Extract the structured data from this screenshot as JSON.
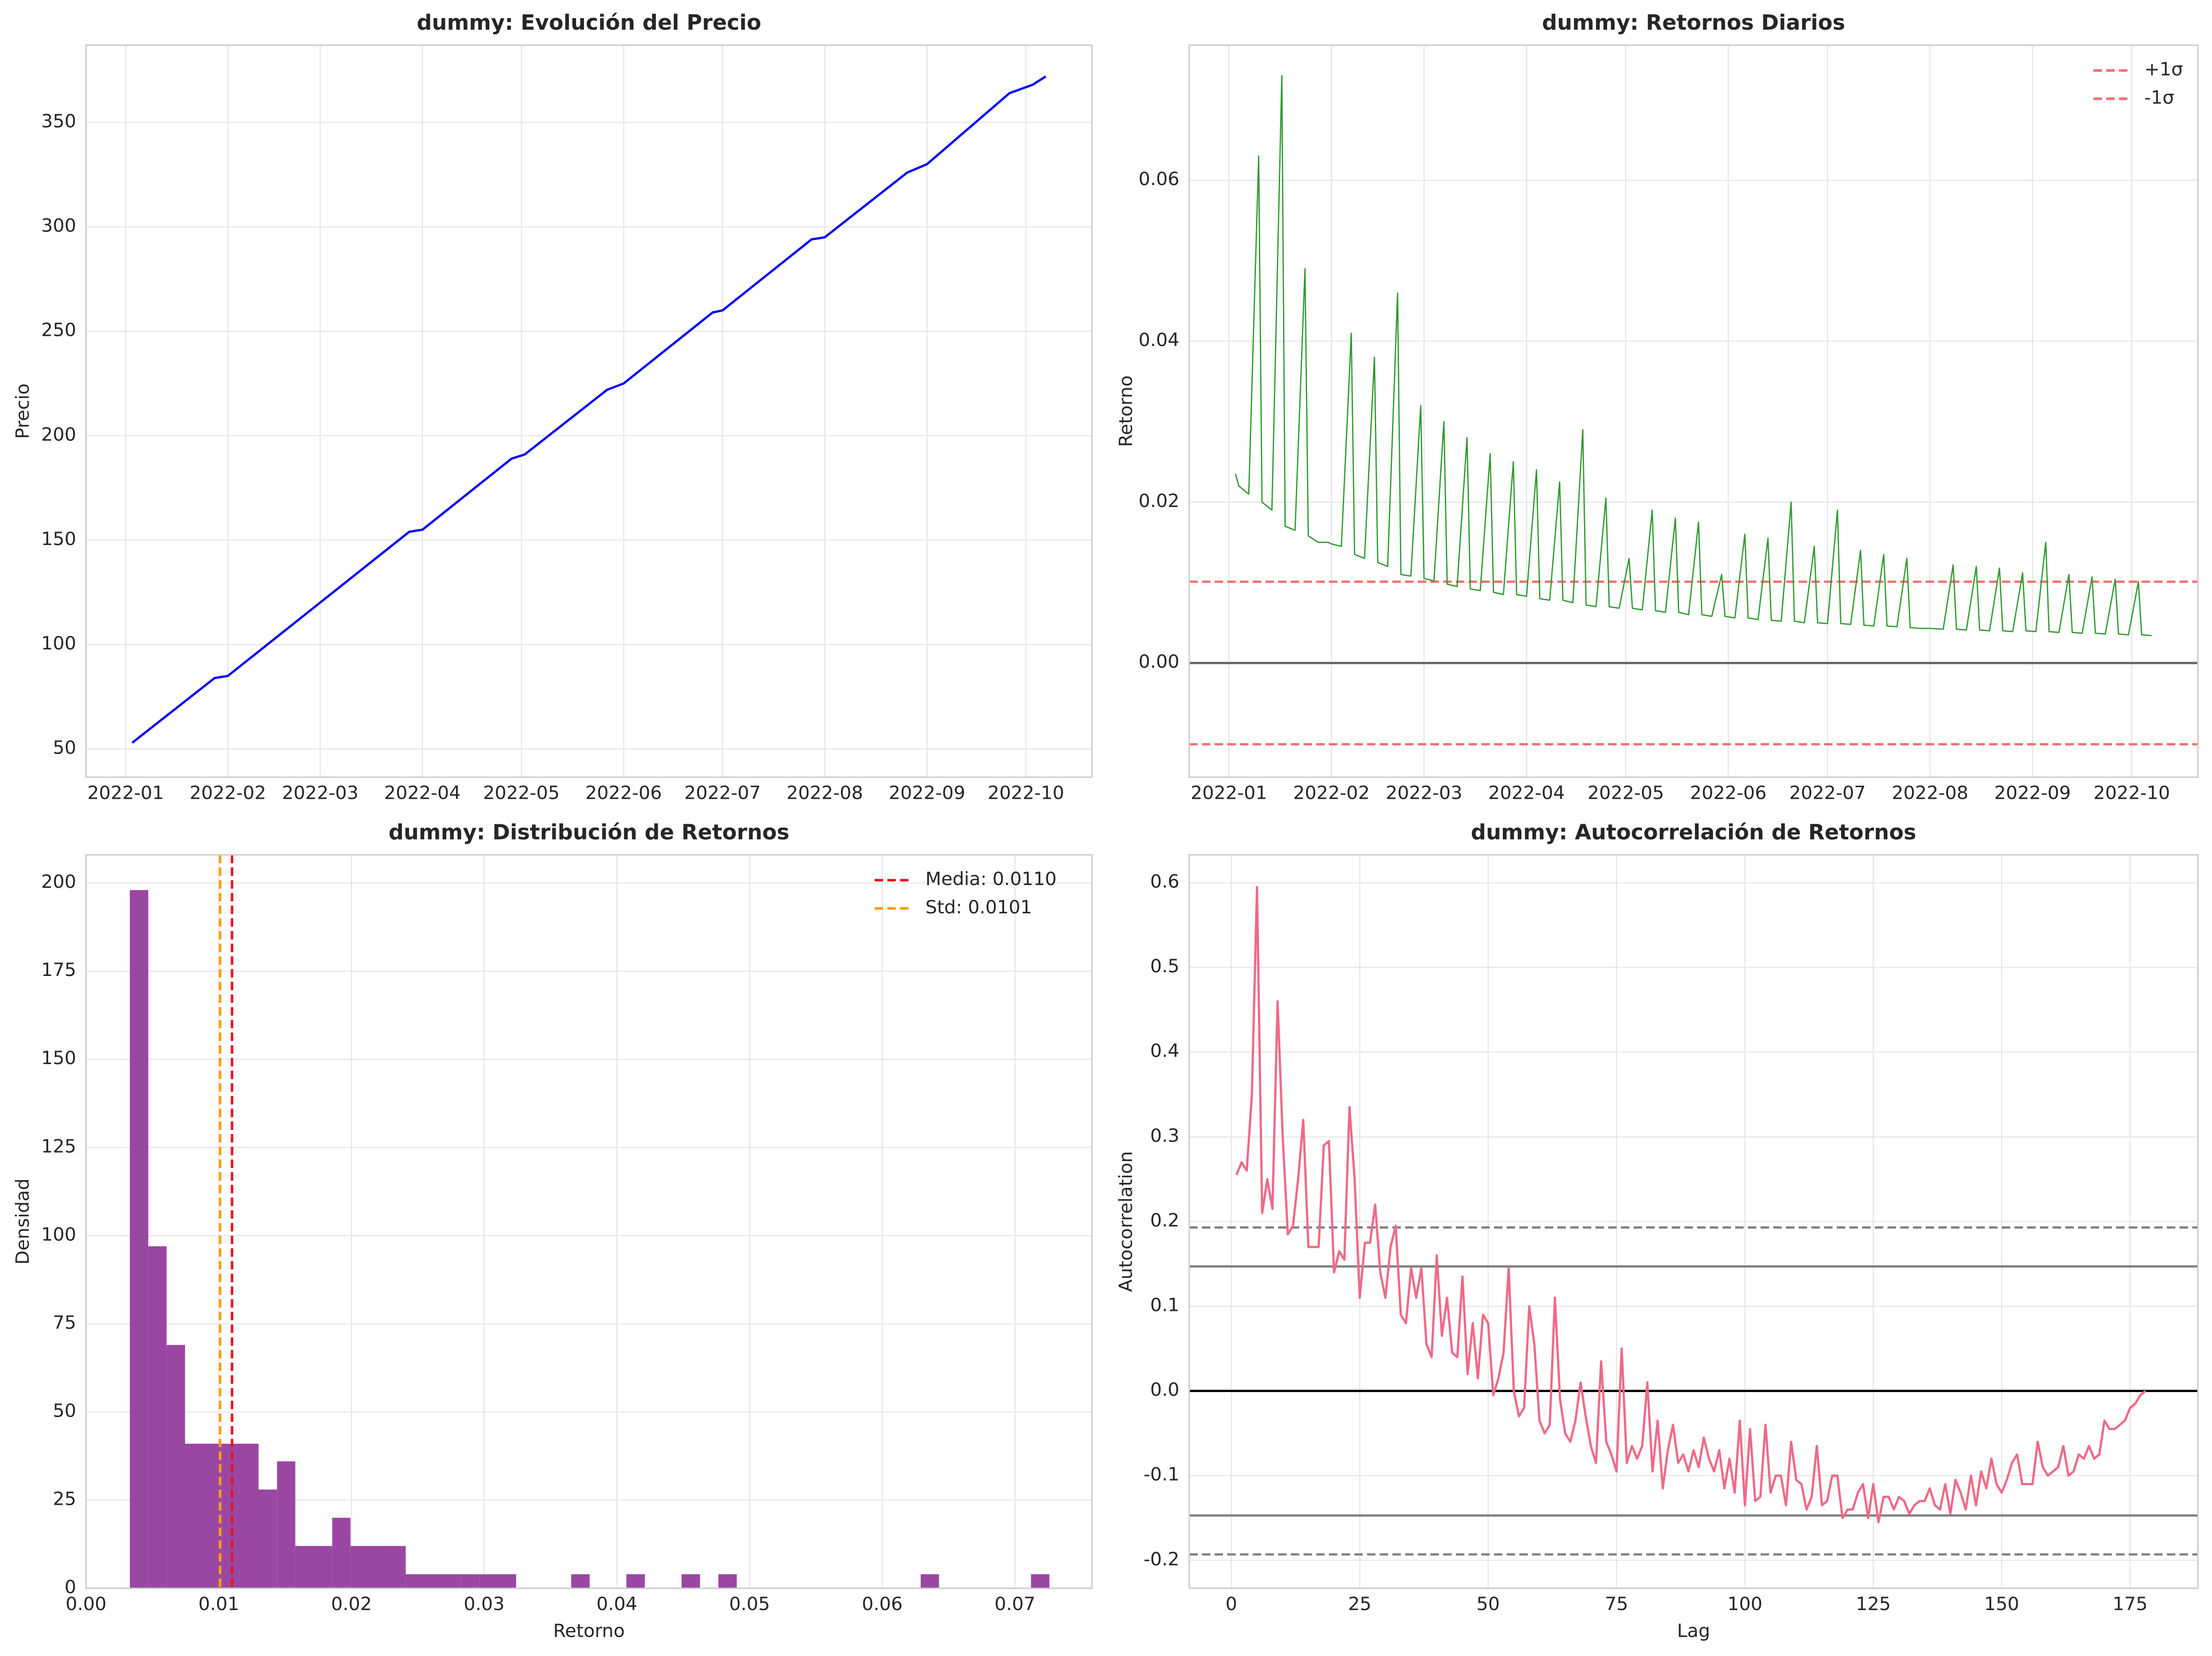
{
  "chart_data": [
    {
      "type": "line",
      "title": "dummy: Evolución del Precio",
      "ylabel": "Precio",
      "x": [
        "2022-01-03",
        "2022-01-28",
        "2022-02-01",
        "2022-03-28",
        "2022-04-01",
        "2022-04-28",
        "2022-05-02",
        "2022-05-27",
        "2022-06-01",
        "2022-06-28",
        "2022-07-01",
        "2022-07-28",
        "2022-08-01",
        "2022-08-26",
        "2022-09-01",
        "2022-09-26",
        "2022-10-03",
        "2022-10-07"
      ],
      "values": [
        53,
        84,
        85,
        154,
        155,
        189,
        191,
        222,
        225,
        259,
        260,
        294,
        295,
        326,
        330,
        364,
        368,
        372
      ],
      "color": "#0000ff",
      "line_width": 1.6,
      "xlim": [
        "2021-12-20",
        "2022-10-21"
      ],
      "xticks": [
        "2022-01",
        "2022-02",
        "2022-03",
        "2022-04",
        "2022-05",
        "2022-06",
        "2022-07",
        "2022-08",
        "2022-09",
        "2022-10"
      ],
      "ylim": [
        36.5,
        387
      ],
      "yticks": [
        50,
        100,
        150,
        200,
        250,
        300,
        350
      ],
      "grid": true
    },
    {
      "type": "line",
      "title": "dummy: Retornos Diarios",
      "ylabel": "Retorno",
      "x": [
        "2022-01-03",
        "2022-01-04",
        "2022-01-07",
        "2022-01-10",
        "2022-01-11",
        "2022-01-14",
        "2022-01-17",
        "2022-01-18",
        "2022-01-21",
        "2022-01-24",
        "2022-01-25",
        "2022-01-28",
        "2022-01-31",
        "2022-02-01",
        "2022-02-04",
        "2022-02-07",
        "2022-02-08",
        "2022-02-11",
        "2022-02-14",
        "2022-02-15",
        "2022-02-18",
        "2022-02-21",
        "2022-02-22",
        "2022-02-25",
        "2022-02-28",
        "2022-03-01",
        "2022-03-04",
        "2022-03-07",
        "2022-03-08",
        "2022-03-11",
        "2022-03-14",
        "2022-03-15",
        "2022-03-18",
        "2022-03-21",
        "2022-03-22",
        "2022-03-25",
        "2022-03-28",
        "2022-03-29",
        "2022-04-01",
        "2022-04-04",
        "2022-04-05",
        "2022-04-08",
        "2022-04-11",
        "2022-04-12",
        "2022-04-15",
        "2022-04-18",
        "2022-04-19",
        "2022-04-22",
        "2022-04-25",
        "2022-04-26",
        "2022-04-29",
        "2022-05-02",
        "2022-05-03",
        "2022-05-06",
        "2022-05-09",
        "2022-05-10",
        "2022-05-13",
        "2022-05-16",
        "2022-05-17",
        "2022-05-20",
        "2022-05-23",
        "2022-05-24",
        "2022-05-27",
        "2022-05-30",
        "2022-05-31",
        "2022-06-03",
        "2022-06-06",
        "2022-06-07",
        "2022-06-10",
        "2022-06-13",
        "2022-06-14",
        "2022-06-17",
        "2022-06-20",
        "2022-06-21",
        "2022-06-24",
        "2022-06-27",
        "2022-06-28",
        "2022-07-01",
        "2022-07-04",
        "2022-07-05",
        "2022-07-08",
        "2022-07-11",
        "2022-07-12",
        "2022-07-15",
        "2022-07-18",
        "2022-07-19",
        "2022-07-22",
        "2022-07-25",
        "2022-07-26",
        "2022-07-29",
        "2022-08-01",
        "2022-08-05",
        "2022-08-08",
        "2022-08-09",
        "2022-08-12",
        "2022-08-15",
        "2022-08-16",
        "2022-08-19",
        "2022-08-22",
        "2022-08-23",
        "2022-08-26",
        "2022-08-29",
        "2022-08-30",
        "2022-09-02",
        "2022-09-05",
        "2022-09-06",
        "2022-09-09",
        "2022-09-12",
        "2022-09-13",
        "2022-09-16",
        "2022-09-19",
        "2022-09-20",
        "2022-09-23",
        "2022-09-26",
        "2022-09-27",
        "2022-09-30",
        "2022-10-03",
        "2022-10-04",
        "2022-10-07"
      ],
      "values": [
        0.0235,
        0.022,
        0.021,
        0.063,
        0.02,
        0.019,
        0.073,
        0.017,
        0.0165,
        0.049,
        0.0158,
        0.015,
        0.015,
        0.0148,
        0.0145,
        0.041,
        0.0135,
        0.013,
        0.038,
        0.0125,
        0.012,
        0.046,
        0.011,
        0.0108,
        0.032,
        0.0105,
        0.0102,
        0.03,
        0.0098,
        0.0095,
        0.028,
        0.0092,
        0.009,
        0.026,
        0.0088,
        0.0085,
        0.025,
        0.0085,
        0.0083,
        0.024,
        0.008,
        0.0078,
        0.0225,
        0.0078,
        0.0075,
        0.029,
        0.0072,
        0.007,
        0.0205,
        0.007,
        0.0068,
        0.013,
        0.0068,
        0.0066,
        0.019,
        0.0065,
        0.0063,
        0.018,
        0.0063,
        0.006,
        0.0175,
        0.006,
        0.0058,
        0.011,
        0.0058,
        0.0056,
        0.016,
        0.0056,
        0.0054,
        0.0155,
        0.0053,
        0.0052,
        0.02,
        0.0052,
        0.005,
        0.0145,
        0.005,
        0.0049,
        0.019,
        0.0049,
        0.0048,
        0.014,
        0.0047,
        0.0046,
        0.0135,
        0.0046,
        0.0045,
        0.013,
        0.0044,
        0.0043,
        0.0043,
        0.0042,
        0.0122,
        0.0042,
        0.0041,
        0.012,
        0.0041,
        0.004,
        0.0118,
        0.004,
        0.0039,
        0.0112,
        0.004,
        0.0039,
        0.015,
        0.0039,
        0.0038,
        0.011,
        0.0038,
        0.0037,
        0.0107,
        0.0037,
        0.0036,
        0.0104,
        0.0036,
        0.0035,
        0.0101,
        0.0035,
        0.0034
      ],
      "color": "#2e9a2e",
      "line_width": 0.9,
      "hlines": [
        {
          "value": 0,
          "color": "#666666",
          "style": "solid"
        },
        {
          "name": "+1σ",
          "value": 0.0101,
          "color": "#f26d6d",
          "style": "dashed"
        },
        {
          "name": "-1σ",
          "value": -0.0101,
          "color": "#f26d6d",
          "style": "dashed"
        }
      ],
      "legend": "upper right",
      "xlim": [
        "2021-12-20",
        "2022-10-21"
      ],
      "xticks": [
        "2022-01",
        "2022-02",
        "2022-03",
        "2022-04",
        "2022-05",
        "2022-06",
        "2022-07",
        "2022-08",
        "2022-09",
        "2022-10"
      ],
      "ylim": [
        -0.0142,
        0.0768
      ],
      "yticks": [
        {
          "value": 0,
          "label": "0.00"
        },
        {
          "value": 0.02,
          "label": "0.02"
        },
        {
          "value": 0.04,
          "label": "0.04"
        },
        {
          "value": 0.06,
          "label": "0.06"
        }
      ],
      "grid": true
    },
    {
      "type": "histogram",
      "title": "dummy: Distribución de Retornos",
      "xlabel": "Retorno",
      "ylabel": "Densidad",
      "bins": [
        0.0033,
        0.00469,
        0.00607,
        0.00746,
        0.00884,
        0.01023,
        0.01162,
        0.013,
        0.01439,
        0.01577,
        0.01716,
        0.01855,
        0.01993,
        0.02132,
        0.0227,
        0.02409,
        0.02548,
        0.02686,
        0.02825,
        0.02963,
        0.03102,
        0.03241,
        0.03379,
        0.03518,
        0.03656,
        0.03795,
        0.03934,
        0.04072,
        0.04211,
        0.04349,
        0.04488,
        0.04627,
        0.04765,
        0.04904,
        0.05042,
        0.05181,
        0.0532,
        0.05458,
        0.05597,
        0.05735,
        0.05874,
        0.06013,
        0.06151,
        0.0629,
        0.06428,
        0.06567,
        0.06706,
        0.06844,
        0.06983,
        0.07121,
        0.0726
      ],
      "values": [
        198,
        97,
        69,
        41,
        41,
        41,
        41,
        28,
        36,
        12,
        12,
        20,
        12,
        12,
        12,
        4,
        4,
        4,
        4,
        4,
        4,
        0,
        0,
        0,
        4,
        0,
        0,
        4,
        0,
        0,
        4,
        0,
        4,
        0,
        0,
        0,
        0,
        0,
        0,
        0,
        0,
        0,
        0,
        4,
        0,
        0,
        0,
        0,
        0,
        4
      ],
      "color": "#9a47a3",
      "vlines": [
        {
          "name": "Media: 0.0110",
          "value": 0.011,
          "color": "#e8141c",
          "style": "dashed"
        },
        {
          "name": "Std: 0.0101",
          "value": 0.0101,
          "color": "#ff9d0a",
          "style": "dashed"
        }
      ],
      "legend": "upper right",
      "xlim": [
        0,
        0.0758
      ],
      "xticks": [
        {
          "value": 0,
          "label": "0.00"
        },
        {
          "value": 0.01,
          "label": "0.01"
        },
        {
          "value": 0.02,
          "label": "0.02"
        },
        {
          "value": 0.03,
          "label": "0.03"
        },
        {
          "value": 0.04,
          "label": "0.04"
        },
        {
          "value": 0.05,
          "label": "0.05"
        },
        {
          "value": 0.06,
          "label": "0.06"
        },
        {
          "value": 0.07,
          "label": "0.07"
        }
      ],
      "ylim": [
        0,
        208
      ],
      "yticks": [
        0,
        25,
        50,
        75,
        100,
        125,
        150,
        175,
        200
      ],
      "grid": true
    },
    {
      "type": "line",
      "title": "dummy: Autocorrelación de Retornos",
      "xlabel": "Lag",
      "ylabel": "Autocorrelation",
      "x": [
        1,
        2,
        3,
        4,
        5,
        6,
        7,
        8,
        9,
        10,
        11,
        12,
        13,
        14,
        15,
        16,
        17,
        18,
        19,
        20,
        21,
        22,
        23,
        24,
        25,
        26,
        27,
        28,
        29,
        30,
        31,
        32,
        33,
        34,
        35,
        36,
        37,
        38,
        39,
        40,
        41,
        42,
        43,
        44,
        45,
        46,
        47,
        48,
        49,
        50,
        51,
        52,
        53,
        54,
        55,
        56,
        57,
        58,
        59,
        60,
        61,
        62,
        63,
        64,
        65,
        66,
        67,
        68,
        69,
        70,
        71,
        72,
        73,
        74,
        75,
        76,
        77,
        78,
        79,
        80,
        81,
        82,
        83,
        84,
        85,
        86,
        87,
        88,
        89,
        90,
        91,
        92,
        93,
        94,
        95,
        96,
        97,
        98,
        99,
        100,
        101,
        102,
        103,
        104,
        105,
        106,
        107,
        108,
        109,
        110,
        111,
        112,
        113,
        114,
        115,
        116,
        117,
        118,
        119,
        120,
        121,
        122,
        123,
        124,
        125,
        126,
        127,
        128,
        129,
        130,
        131,
        132,
        133,
        134,
        135,
        136,
        137,
        138,
        139,
        140,
        141,
        142,
        143,
        144,
        145,
        146,
        147,
        148,
        149,
        150,
        151,
        152,
        153,
        154,
        155,
        156,
        157,
        158,
        159,
        160,
        161,
        162,
        163,
        164,
        165,
        166,
        167,
        168,
        169,
        170,
        171,
        172,
        173,
        174,
        175,
        176,
        177,
        178
      ],
      "values": [
        0.255,
        0.27,
        0.26,
        0.35,
        0.595,
        0.21,
        0.25,
        0.215,
        0.46,
        0.3,
        0.185,
        0.195,
        0.25,
        0.32,
        0.17,
        0.17,
        0.17,
        0.29,
        0.295,
        0.14,
        0.165,
        0.155,
        0.335,
        0.25,
        0.11,
        0.175,
        0.175,
        0.22,
        0.14,
        0.11,
        0.17,
        0.195,
        0.09,
        0.08,
        0.145,
        0.11,
        0.145,
        0.055,
        0.04,
        0.16,
        0.065,
        0.11,
        0.045,
        0.04,
        0.135,
        0.02,
        0.08,
        0.015,
        0.09,
        0.08,
        -0.005,
        0.015,
        0.045,
        0.145,
        0.0,
        -0.03,
        -0.02,
        0.1,
        0.055,
        -0.035,
        -0.05,
        -0.04,
        0.11,
        -0.01,
        -0.05,
        -0.06,
        -0.035,
        0.01,
        -0.03,
        -0.065,
        -0.085,
        0.035,
        -0.06,
        -0.075,
        -0.095,
        0.05,
        -0.085,
        -0.065,
        -0.08,
        -0.065,
        0.01,
        -0.095,
        -0.035,
        -0.115,
        -0.07,
        -0.04,
        -0.085,
        -0.075,
        -0.095,
        -0.07,
        -0.09,
        -0.055,
        -0.08,
        -0.095,
        -0.07,
        -0.115,
        -0.08,
        -0.12,
        -0.035,
        -0.135,
        -0.045,
        -0.13,
        -0.125,
        -0.04,
        -0.12,
        -0.1,
        -0.1,
        -0.135,
        -0.06,
        -0.105,
        -0.11,
        -0.14,
        -0.125,
        -0.065,
        -0.135,
        -0.13,
        -0.1,
        -0.1,
        -0.15,
        -0.14,
        -0.14,
        -0.12,
        -0.11,
        -0.15,
        -0.11,
        -0.155,
        -0.125,
        -0.125,
        -0.14,
        -0.125,
        -0.13,
        -0.145,
        -0.135,
        -0.13,
        -0.13,
        -0.115,
        -0.135,
        -0.14,
        -0.11,
        -0.145,
        -0.105,
        -0.12,
        -0.14,
        -0.1,
        -0.135,
        -0.095,
        -0.115,
        -0.08,
        -0.11,
        -0.12,
        -0.105,
        -0.085,
        -0.075,
        -0.11,
        -0.11,
        -0.11,
        -0.06,
        -0.09,
        -0.1,
        -0.095,
        -0.09,
        -0.065,
        -0.1,
        -0.095,
        -0.075,
        -0.08,
        -0.065,
        -0.08,
        -0.075,
        -0.035,
        -0.045,
        -0.045,
        -0.04,
        -0.035,
        -0.02,
        -0.015,
        -0.005,
        0.0
      ],
      "color": "#ee6a87",
      "line_width": 1.6,
      "hlines": [
        {
          "value": 0,
          "color": "#000000",
          "style": "solid"
        },
        {
          "value": 0.147,
          "color": "#7f7f7f",
          "style": "solid"
        },
        {
          "value": -0.147,
          "color": "#7f7f7f",
          "style": "solid"
        },
        {
          "value": 0.193,
          "color": "#7f7f7f",
          "style": "dashed"
        },
        {
          "value": -0.193,
          "color": "#7f7f7f",
          "style": "dashed"
        }
      ],
      "xlim": [
        -8.2,
        188.2
      ],
      "xticks": [
        0,
        25,
        50,
        75,
        100,
        125,
        150,
        175
      ],
      "ylim": [
        -0.233,
        0.633
      ],
      "yticks": [
        -0.2,
        -0.1,
        {
          "value": 0,
          "label": "0.0"
        },
        0.1,
        0.2,
        0.3,
        0.4,
        0.5,
        0.6
      ],
      "grid": true
    }
  ]
}
